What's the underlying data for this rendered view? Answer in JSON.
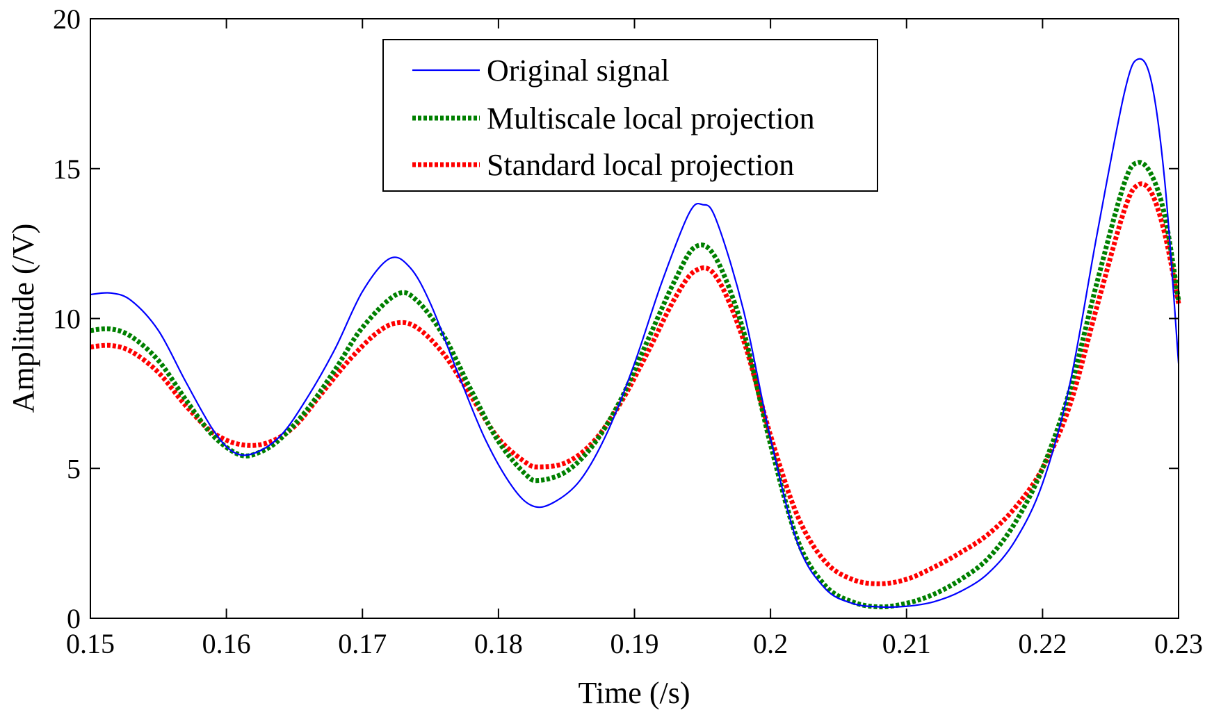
{
  "chart_data": {
    "type": "line",
    "title": "",
    "xlabel": "Time (/s)",
    "ylabel": "Amplitude (/V)",
    "xlim": [
      0.15,
      0.23
    ],
    "ylim": [
      0,
      20
    ],
    "xticks": [
      0.15,
      0.16,
      0.17,
      0.18,
      0.19,
      0.2,
      0.21,
      0.22,
      0.23
    ],
    "xtick_labels": [
      "0.15",
      "0.16",
      "0.17",
      "0.18",
      "0.19",
      "0.2",
      "0.21",
      "0.22",
      "0.23"
    ],
    "yticks": [
      0,
      5,
      10,
      15,
      20
    ],
    "ytick_labels": [
      "0",
      "5",
      "10",
      "15",
      "20"
    ],
    "grid": false,
    "legend_position": "top-center",
    "series": [
      {
        "name": "Original signal",
        "color": "#0000ff",
        "style": "solid",
        "points": [
          [
            0.15,
            10.8
          ],
          [
            0.1515,
            10.85
          ],
          [
            0.153,
            10.6
          ],
          [
            0.155,
            9.6
          ],
          [
            0.157,
            7.9
          ],
          [
            0.159,
            6.3
          ],
          [
            0.1605,
            5.55
          ],
          [
            0.162,
            5.5
          ],
          [
            0.164,
            6.1
          ],
          [
            0.166,
            7.4
          ],
          [
            0.168,
            9.0
          ],
          [
            0.17,
            10.9
          ],
          [
            0.172,
            12.0
          ],
          [
            0.1735,
            11.7
          ],
          [
            0.175,
            10.5
          ],
          [
            0.177,
            8.2
          ],
          [
            0.179,
            6.0
          ],
          [
            0.181,
            4.4
          ],
          [
            0.1825,
            3.75
          ],
          [
            0.184,
            3.85
          ],
          [
            0.186,
            4.6
          ],
          [
            0.188,
            6.2
          ],
          [
            0.19,
            8.5
          ],
          [
            0.192,
            11.2
          ],
          [
            0.194,
            13.5
          ],
          [
            0.195,
            13.8
          ],
          [
            0.196,
            13.3
          ],
          [
            0.198,
            10.3
          ],
          [
            0.2,
            6.0
          ],
          [
            0.202,
            2.5
          ],
          [
            0.204,
            1.0
          ],
          [
            0.206,
            0.5
          ],
          [
            0.208,
            0.38
          ],
          [
            0.21,
            0.4
          ],
          [
            0.212,
            0.55
          ],
          [
            0.214,
            0.9
          ],
          [
            0.216,
            1.5
          ],
          [
            0.218,
            2.6
          ],
          [
            0.22,
            4.5
          ],
          [
            0.222,
            7.8
          ],
          [
            0.224,
            12.8
          ],
          [
            0.226,
            17.5
          ],
          [
            0.227,
            18.65
          ],
          [
            0.228,
            17.9
          ],
          [
            0.229,
            14.5
          ],
          [
            0.23,
            8.5
          ]
        ]
      },
      {
        "name": "Multiscale local projection",
        "color": "#008000",
        "style": "dotted",
        "points": [
          [
            0.15,
            9.6
          ],
          [
            0.1515,
            9.65
          ],
          [
            0.153,
            9.4
          ],
          [
            0.155,
            8.6
          ],
          [
            0.157,
            7.3
          ],
          [
            0.159,
            6.1
          ],
          [
            0.161,
            5.45
          ],
          [
            0.1625,
            5.55
          ],
          [
            0.164,
            6.0
          ],
          [
            0.166,
            7.0
          ],
          [
            0.168,
            8.3
          ],
          [
            0.17,
            9.7
          ],
          [
            0.1725,
            10.8
          ],
          [
            0.174,
            10.6
          ],
          [
            0.176,
            9.4
          ],
          [
            0.178,
            7.6
          ],
          [
            0.18,
            5.9
          ],
          [
            0.182,
            4.8
          ],
          [
            0.183,
            4.6
          ],
          [
            0.185,
            4.9
          ],
          [
            0.187,
            5.8
          ],
          [
            0.189,
            7.3
          ],
          [
            0.191,
            9.3
          ],
          [
            0.193,
            11.3
          ],
          [
            0.1945,
            12.4
          ],
          [
            0.196,
            12.0
          ],
          [
            0.198,
            9.6
          ],
          [
            0.2,
            5.8
          ],
          [
            0.202,
            2.6
          ],
          [
            0.204,
            1.1
          ],
          [
            0.206,
            0.55
          ],
          [
            0.208,
            0.38
          ],
          [
            0.21,
            0.5
          ],
          [
            0.212,
            0.8
          ],
          [
            0.214,
            1.3
          ],
          [
            0.216,
            2.0
          ],
          [
            0.218,
            3.2
          ],
          [
            0.22,
            5.0
          ],
          [
            0.222,
            7.6
          ],
          [
            0.224,
            11.2
          ],
          [
            0.226,
            14.5
          ],
          [
            0.227,
            15.2
          ],
          [
            0.228,
            14.8
          ],
          [
            0.229,
            13.4
          ],
          [
            0.23,
            10.6
          ]
        ]
      },
      {
        "name": "Standard local projection",
        "color": "#ff0000",
        "style": "dotted",
        "points": [
          [
            0.15,
            9.05
          ],
          [
            0.1515,
            9.1
          ],
          [
            0.153,
            8.9
          ],
          [
            0.155,
            8.2
          ],
          [
            0.157,
            7.1
          ],
          [
            0.159,
            6.2
          ],
          [
            0.161,
            5.8
          ],
          [
            0.163,
            5.85
          ],
          [
            0.165,
            6.4
          ],
          [
            0.167,
            7.5
          ],
          [
            0.169,
            8.6
          ],
          [
            0.171,
            9.5
          ],
          [
            0.1725,
            9.85
          ],
          [
            0.174,
            9.7
          ],
          [
            0.176,
            8.8
          ],
          [
            0.178,
            7.4
          ],
          [
            0.18,
            6.0
          ],
          [
            0.182,
            5.2
          ],
          [
            0.183,
            5.05
          ],
          [
            0.185,
            5.2
          ],
          [
            0.187,
            5.9
          ],
          [
            0.189,
            7.2
          ],
          [
            0.191,
            8.9
          ],
          [
            0.193,
            10.7
          ],
          [
            0.1945,
            11.6
          ],
          [
            0.196,
            11.4
          ],
          [
            0.198,
            9.3
          ],
          [
            0.2,
            6.1
          ],
          [
            0.202,
            3.4
          ],
          [
            0.204,
            1.9
          ],
          [
            0.206,
            1.3
          ],
          [
            0.208,
            1.15
          ],
          [
            0.21,
            1.3
          ],
          [
            0.212,
            1.7
          ],
          [
            0.214,
            2.2
          ],
          [
            0.216,
            2.8
          ],
          [
            0.218,
            3.7
          ],
          [
            0.22,
            5.0
          ],
          [
            0.222,
            7.1
          ],
          [
            0.224,
            10.4
          ],
          [
            0.226,
            13.6
          ],
          [
            0.227,
            14.45
          ],
          [
            0.228,
            14.2
          ],
          [
            0.229,
            12.8
          ],
          [
            0.23,
            10.5
          ]
        ]
      }
    ]
  }
}
